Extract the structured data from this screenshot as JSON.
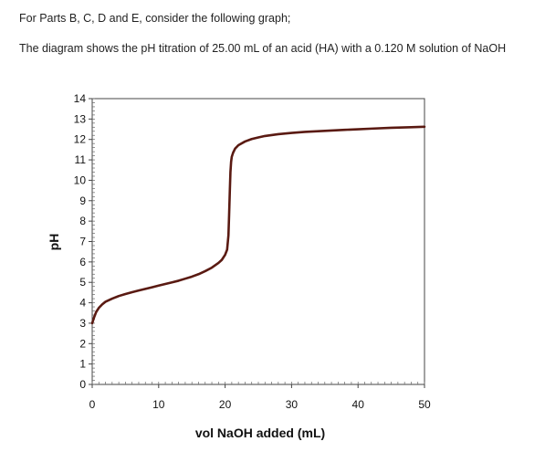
{
  "question": {
    "intro": "For Parts B, C, D and E, consider the following graph;",
    "description": "The  diagram shows the pH titration of 25.00 mL of an acid (HA) with a 0.120 M solution of NaOH"
  },
  "chart_data": {
    "type": "line",
    "xlabel": "vol NaOH added (mL)",
    "ylabel": "pH",
    "xlim": [
      0,
      50
    ],
    "ylim": [
      0,
      14
    ],
    "xticks": [
      0,
      10,
      20,
      30,
      40,
      50
    ],
    "yticks": [
      0,
      1,
      2,
      3,
      4,
      5,
      6,
      7,
      8,
      9,
      10,
      11,
      12,
      13,
      14
    ],
    "grid": false,
    "legend": "none",
    "line_color": "#5a1a12",
    "series": [
      {
        "x": [
          0,
          0.3,
          0.6,
          1,
          1.5,
          2,
          3,
          4,
          5,
          6,
          7,
          8,
          9,
          10,
          11,
          12,
          13,
          14,
          15,
          16,
          17,
          18,
          19,
          19.5,
          20,
          20.3,
          20.5,
          20.6,
          20.7,
          20.8,
          20.9,
          21,
          21.2,
          21.5,
          22,
          23,
          24,
          25,
          26,
          28,
          30,
          32,
          35,
          38,
          40,
          42,
          45,
          48,
          50
        ],
        "y": [
          3.0,
          3.3,
          3.55,
          3.75,
          3.92,
          4.05,
          4.2,
          4.33,
          4.43,
          4.52,
          4.6,
          4.68,
          4.76,
          4.84,
          4.92,
          5.0,
          5.08,
          5.18,
          5.28,
          5.4,
          5.55,
          5.72,
          5.95,
          6.1,
          6.35,
          6.6,
          7.3,
          8.3,
          9.4,
          10.4,
          10.9,
          11.15,
          11.35,
          11.55,
          11.72,
          11.9,
          12.02,
          12.1,
          12.17,
          12.26,
          12.32,
          12.37,
          12.42,
          12.47,
          12.5,
          12.53,
          12.57,
          12.6,
          12.62
        ]
      }
    ]
  }
}
